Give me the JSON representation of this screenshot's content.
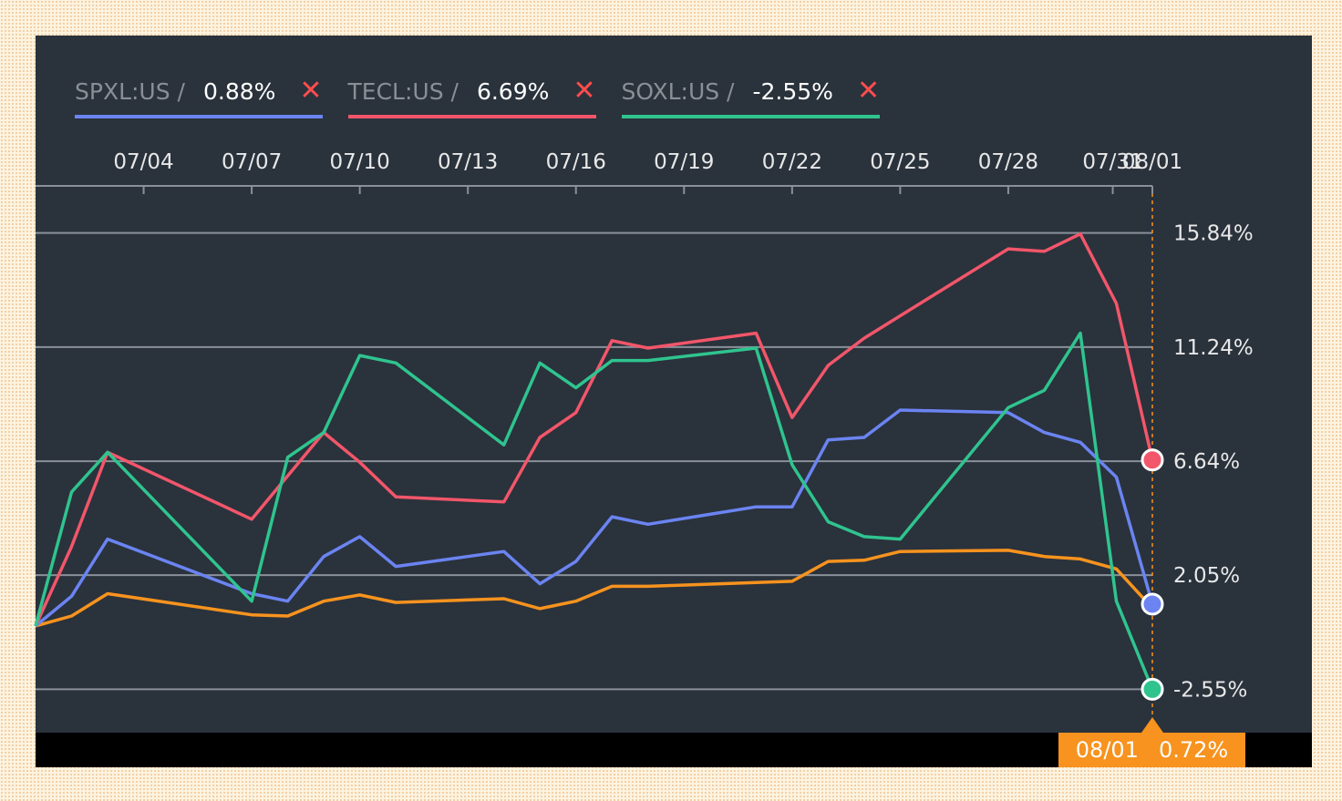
{
  "legend": [
    {
      "ticker": "SPXL:US /",
      "value": "0.88%",
      "close": "✕",
      "color": "#6b84f2"
    },
    {
      "ticker": "TECL:US /",
      "value": "6.69%",
      "close": "✕",
      "color": "#f2566a"
    },
    {
      "ticker": "SOXL:US /",
      "value": "-2.55%",
      "close": "✕",
      "color": "#2fc48e"
    }
  ],
  "crosshair": {
    "date": "08/01",
    "value": "0.72%"
  },
  "chart_data": {
    "type": "line",
    "x_tick_labels": [
      {
        "label": "07/04",
        "day": 4
      },
      {
        "label": "07/07",
        "day": 7
      },
      {
        "label": "07/10",
        "day": 10
      },
      {
        "label": "07/13",
        "day": 13
      },
      {
        "label": "07/16",
        "day": 16
      },
      {
        "label": "07/19",
        "day": 19
      },
      {
        "label": "07/22",
        "day": 22
      },
      {
        "label": "07/25",
        "day": 25
      },
      {
        "label": "07/28",
        "day": 28
      },
      {
        "label": "07/31",
        "day": 30.9
      },
      {
        "label": "08/01",
        "day": 32
      }
    ],
    "y_tick_labels": [
      {
        "label": "15.84%",
        "value": 15.84
      },
      {
        "label": "11.24%",
        "value": 11.24
      },
      {
        "label": "6.64%",
        "value": 6.64
      },
      {
        "label": "2.05%",
        "value": 2.05
      },
      {
        "label": "-2.55%",
        "value": -2.55
      }
    ],
    "xlim": [
      1,
      32
    ],
    "ylim": [
      -4.3,
      17.7
    ],
    "grid": true,
    "series": [
      {
        "name": "SPXL:US",
        "color": "#6b84f2",
        "x": [
          1,
          2,
          3,
          7,
          8,
          9,
          10,
          11,
          14,
          15,
          16,
          17,
          18,
          21,
          22,
          23,
          24,
          25,
          28,
          29,
          30,
          31,
          32
        ],
        "y": [
          0.0,
          1.2,
          3.5,
          1.3,
          1.0,
          2.8,
          3.6,
          2.4,
          3.0,
          1.7,
          2.6,
          4.4,
          4.1,
          4.8,
          4.8,
          7.5,
          7.6,
          8.7,
          8.6,
          7.8,
          7.4,
          6.0,
          0.88
        ]
      },
      {
        "name": "TECL:US",
        "color": "#f2566a",
        "x": [
          1,
          2,
          3,
          7,
          9,
          10,
          11,
          14,
          15,
          16,
          17,
          18,
          21,
          22,
          23,
          24,
          28,
          29,
          30,
          31,
          32
        ],
        "y": [
          0.0,
          3.2,
          7.0,
          4.3,
          7.8,
          6.6,
          5.2,
          5.0,
          7.6,
          8.6,
          11.5,
          11.2,
          11.8,
          8.4,
          10.5,
          11.6,
          15.2,
          15.1,
          15.8,
          13.0,
          6.69
        ]
      },
      {
        "name": "SOXL:US",
        "color": "#2fc48e",
        "x": [
          1,
          2,
          3,
          7,
          8,
          9,
          10,
          11,
          14,
          15,
          16,
          17,
          18,
          21,
          22,
          23,
          24,
          25,
          28,
          29,
          30,
          31,
          32
        ],
        "y": [
          0.0,
          5.4,
          7.0,
          1.0,
          6.8,
          7.8,
          10.9,
          10.6,
          7.3,
          10.6,
          9.6,
          10.7,
          10.7,
          11.2,
          6.5,
          4.2,
          3.6,
          3.5,
          8.8,
          9.5,
          11.8,
          1.0,
          -2.55
        ]
      },
      {
        "color": "#f7931e",
        "x": [
          1,
          2,
          3,
          7,
          8,
          9,
          10,
          11,
          14,
          15,
          16,
          17,
          18,
          21,
          22,
          23,
          24,
          25,
          28,
          29,
          30,
          31,
          32
        ],
        "y": [
          0.0,
          0.4,
          1.3,
          0.45,
          0.4,
          1.0,
          1.25,
          0.95,
          1.1,
          0.7,
          1.0,
          1.6,
          1.6,
          1.75,
          1.8,
          2.6,
          2.65,
          3.0,
          3.05,
          2.8,
          2.7,
          2.3,
          0.72
        ]
      }
    ]
  }
}
